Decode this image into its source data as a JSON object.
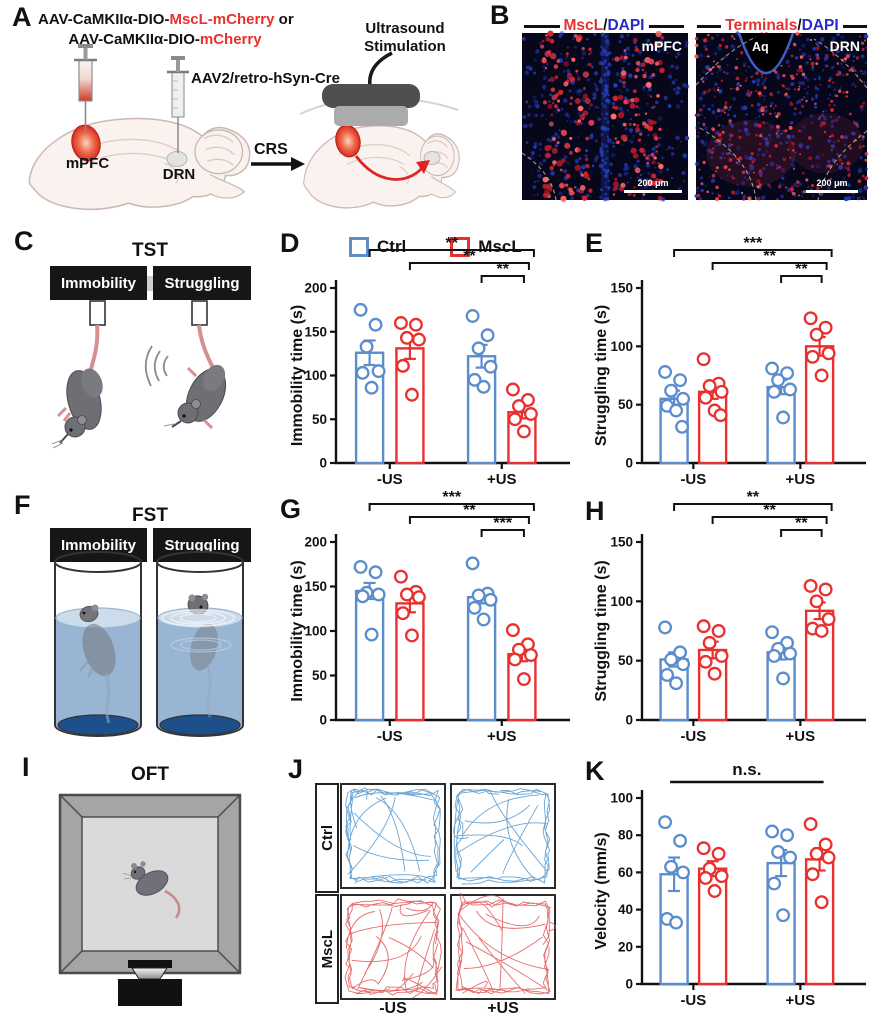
{
  "colors": {
    "ctrl": "#5b8dcd",
    "mscl": "#e8312f",
    "dapi": "#2a2ac8",
    "red_text": "#e8312f",
    "trace_ctrl": "#4f94cc",
    "trace_mscl": "#e05252"
  },
  "letters": {
    "a": "A",
    "b": "B",
    "c": "C",
    "d": "D",
    "e": "E",
    "f": "F",
    "g": "G",
    "h": "H",
    "i": "I",
    "j": "J",
    "k": "K"
  },
  "panel_a": {
    "virus1_pre": "AAV-CaMKIIα-DIO-",
    "virus1_red": "MscL-mCherry",
    "virus1_suf": " or",
    "virus2_pre": "AAV-CaMKIIα-DIO-",
    "virus2_red": "mCherry",
    "retro_virus": "AAV2/retro-hSyn-Cre",
    "mpfc": "mPFC",
    "drn": "DRN",
    "crs": "CRS",
    "us_line1": "Ultrasound",
    "us_line2": "Stimulation"
  },
  "panel_b": {
    "left": {
      "stain_red": "MscL",
      "slash": "/",
      "stain_blue": "DAPI",
      "region": "mPFC",
      "scalebar": "200 μm"
    },
    "right": {
      "stain_red": "Terminals",
      "slash": "/",
      "stain_blue": "DAPI",
      "region": "DRN",
      "aqueduct": "Aq",
      "scalebar": "200 μm"
    }
  },
  "panel_c": {
    "title": "TST",
    "behavior1": "Immobility",
    "behavior2": "Struggling"
  },
  "panel_f": {
    "title": "FST",
    "behavior1": "Immobility",
    "behavior2": "Struggling"
  },
  "panel_i": {
    "title": "OFT"
  },
  "panel_j": {
    "row1": "Ctrl",
    "row2": "MscL",
    "col1": "-US",
    "col2": "+US"
  },
  "legend": {
    "ctrl": "Ctrl",
    "mscl": "MscL"
  },
  "chart_data": [
    {
      "panel": "D",
      "type": "bar",
      "ylabel": "Immobility time (s)",
      "ylim": [
        0,
        200
      ],
      "yticks": [
        0,
        50,
        100,
        150,
        200
      ],
      "categories": [
        "-US",
        "+US"
      ],
      "series": [
        {
          "name": "Ctrl",
          "color": "#5b8dcd",
          "means": [
            126,
            122
          ],
          "sems": [
            14,
            13
          ],
          "points": [
            [
              175,
              158,
              133,
              105,
              103,
              86
            ],
            [
              168,
              146,
              131,
              110,
              95,
              87
            ]
          ]
        },
        {
          "name": "MscL",
          "color": "#e8312f",
          "means": [
            131,
            58
          ],
          "sems": [
            12,
            7
          ],
          "points": [
            [
              160,
              158,
              143,
              141,
              111,
              78
            ],
            [
              84,
              72,
              65,
              56,
              50,
              36
            ]
          ]
        }
      ],
      "significance": [
        {
          "from": 0,
          "to": 3,
          "label": "**"
        },
        {
          "from": 1,
          "to": 3,
          "label": "**"
        },
        {
          "from": 2,
          "to": 3,
          "label": "**"
        }
      ]
    },
    {
      "panel": "E",
      "type": "bar",
      "ylabel": "Struggling time (s)",
      "ylim": [
        0,
        150
      ],
      "yticks": [
        0,
        50,
        100,
        150
      ],
      "categories": [
        "-US",
        "+US"
      ],
      "series": [
        {
          "name": "Ctrl",
          "color": "#5b8dcd",
          "means": [
            55,
            65
          ],
          "sems": [
            7,
            6
          ],
          "points": [
            [
              78,
              71,
              62,
              55,
              49,
              45,
              31
            ],
            [
              81,
              77,
              71,
              63,
              61,
              39
            ]
          ]
        },
        {
          "name": "MscL",
          "color": "#e8312f",
          "means": [
            61,
            100
          ],
          "sems": [
            6,
            8
          ],
          "points": [
            [
              89,
              68,
              66,
              61,
              56,
              45,
              41
            ],
            [
              124,
              116,
              110,
              94,
              91,
              75
            ]
          ]
        }
      ],
      "significance": [
        {
          "from": 0,
          "to": 3,
          "label": "***"
        },
        {
          "from": 1,
          "to": 3,
          "label": "**"
        },
        {
          "from": 2,
          "to": 3,
          "label": "**"
        }
      ]
    },
    {
      "panel": "G",
      "type": "bar",
      "ylabel": "Immobility time (s)",
      "ylim": [
        0,
        200
      ],
      "yticks": [
        0,
        50,
        100,
        150,
        200
      ],
      "categories": [
        "-US",
        "+US"
      ],
      "series": [
        {
          "name": "Ctrl",
          "color": "#5b8dcd",
          "means": [
            145,
            138
          ],
          "sems": [
            9,
            7
          ],
          "points": [
            [
              172,
              166,
              143,
              141,
              139,
              96
            ],
            [
              176,
              142,
              140,
              135,
              126,
              113
            ]
          ]
        },
        {
          "name": "MscL",
          "color": "#e8312f",
          "means": [
            131,
            74
          ],
          "sems": [
            10,
            8
          ],
          "points": [
            [
              161,
              144,
              141,
              138,
              120,
              95
            ],
            [
              101,
              85,
              79,
              73,
              68,
              46
            ]
          ]
        }
      ],
      "significance": [
        {
          "from": 0,
          "to": 3,
          "label": "***"
        },
        {
          "from": 1,
          "to": 3,
          "label": "**"
        },
        {
          "from": 2,
          "to": 3,
          "label": "***"
        }
      ]
    },
    {
      "panel": "H",
      "type": "bar",
      "ylabel": "Struggling time (s)",
      "ylim": [
        0,
        150
      ],
      "yticks": [
        0,
        50,
        100,
        150
      ],
      "categories": [
        "-US",
        "+US"
      ],
      "series": [
        {
          "name": "Ctrl",
          "color": "#5b8dcd",
          "means": [
            51,
            57
          ],
          "sems": [
            6,
            6
          ],
          "points": [
            [
              78,
              57,
              51,
              47,
              38,
              31
            ],
            [
              74,
              65,
              60,
              56,
              54,
              35
            ]
          ]
        },
        {
          "name": "MscL",
          "color": "#e8312f",
          "means": [
            59,
            92
          ],
          "sems": [
            7,
            7
          ],
          "points": [
            [
              79,
              75,
              65,
              54,
              49,
              39
            ],
            [
              113,
              110,
              100,
              85,
              77,
              75
            ]
          ]
        }
      ],
      "significance": [
        {
          "from": 0,
          "to": 3,
          "label": "**"
        },
        {
          "from": 1,
          "to": 3,
          "label": "**"
        },
        {
          "from": 2,
          "to": 3,
          "label": "**"
        }
      ]
    },
    {
      "panel": "K",
      "type": "bar",
      "ylabel": "Velocity (mm/s)",
      "ylim": [
        0,
        100
      ],
      "yticks": [
        0,
        20,
        40,
        60,
        80,
        100
      ],
      "categories": [
        "-US",
        "+US"
      ],
      "series": [
        {
          "name": "Ctrl",
          "color": "#5b8dcd",
          "means": [
            59,
            65
          ],
          "sems": [
            9,
            7
          ],
          "points": [
            [
              87,
              77,
              63,
              60,
              35,
              33
            ],
            [
              82,
              80,
              71,
              68,
              54,
              37
            ]
          ]
        },
        {
          "name": "MscL",
          "color": "#e8312f",
          "means": [
            62,
            67
          ],
          "sems": [
            4,
            6
          ],
          "points": [
            [
              73,
              70,
              62,
              58,
              57,
              50
            ],
            [
              86,
              75,
              70,
              68,
              59,
              44
            ]
          ]
        }
      ],
      "significance": [
        {
          "from": 0,
          "to": 3,
          "label": "n.s.",
          "style": "line"
        }
      ]
    }
  ]
}
